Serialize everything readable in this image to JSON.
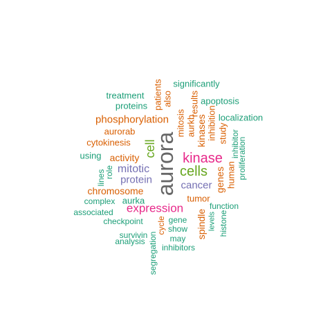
{
  "colors": {
    "green": "#1b9e77",
    "orange": "#d95f02",
    "purple": "#7570b3",
    "pink": "#e7298a",
    "lime": "#66a61e",
    "gray": "#666666"
  },
  "words": [
    {
      "text": "aurora",
      "color": "gray",
      "vertical": true
    },
    {
      "text": "kinase",
      "color": "pink",
      "vertical": false
    },
    {
      "text": "cells",
      "color": "lime",
      "vertical": false
    },
    {
      "text": "expression",
      "color": "pink",
      "vertical": false
    },
    {
      "text": "cell",
      "color": "lime",
      "vertical": true
    },
    {
      "text": "mitotic",
      "color": "purple",
      "vertical": false
    },
    {
      "text": "protein",
      "color": "purple",
      "vertical": false
    },
    {
      "text": "cancer",
      "color": "purple",
      "vertical": false
    },
    {
      "text": "phosphorylation",
      "color": "orange",
      "vertical": false
    },
    {
      "text": "chromosome",
      "color": "orange",
      "vertical": false
    },
    {
      "text": "activity",
      "color": "orange",
      "vertical": false
    },
    {
      "text": "aurorab",
      "color": "orange",
      "vertical": false
    },
    {
      "text": "cytokinesis",
      "color": "orange",
      "vertical": false
    },
    {
      "text": "kinases",
      "color": "orange",
      "vertical": true
    },
    {
      "text": "aurkb",
      "color": "orange",
      "vertical": true
    },
    {
      "text": "mitosis",
      "color": "orange",
      "vertical": true
    },
    {
      "text": "inhibition",
      "color": "orange",
      "vertical": true
    },
    {
      "text": "results",
      "color": "orange",
      "vertical": true
    },
    {
      "text": "patients",
      "color": "orange",
      "vertical": true
    },
    {
      "text": "also",
      "color": "orange",
      "vertical": true
    },
    {
      "text": "study",
      "color": "orange",
      "vertical": true
    },
    {
      "text": "genes",
      "color": "orange",
      "vertical": true
    },
    {
      "text": "human",
      "color": "orange",
      "vertical": true
    },
    {
      "text": "spindle",
      "color": "orange",
      "vertical": true
    },
    {
      "text": "tumor",
      "color": "orange",
      "vertical": false
    },
    {
      "text": "cycle",
      "color": "orange",
      "vertical": true
    },
    {
      "text": "significantly",
      "color": "green",
      "vertical": false
    },
    {
      "text": "treatment",
      "color": "green",
      "vertical": false
    },
    {
      "text": "proteins",
      "color": "green",
      "vertical": false
    },
    {
      "text": "apoptosis",
      "color": "green",
      "vertical": false
    },
    {
      "text": "localization",
      "color": "green",
      "vertical": false
    },
    {
      "text": "inhibitor",
      "color": "green",
      "vertical": true
    },
    {
      "text": "proliferation",
      "color": "green",
      "vertical": true
    },
    {
      "text": "using",
      "color": "green",
      "vertical": false
    },
    {
      "text": "lines",
      "color": "green",
      "vertical": true
    },
    {
      "text": "role",
      "color": "green",
      "vertical": true
    },
    {
      "text": "aurka",
      "color": "green",
      "vertical": false
    },
    {
      "text": "complex",
      "color": "green",
      "vertical": false
    },
    {
      "text": "associated",
      "color": "green",
      "vertical": false
    },
    {
      "text": "checkpoint",
      "color": "green",
      "vertical": false
    },
    {
      "text": "gene",
      "color": "green",
      "vertical": false
    },
    {
      "text": "show",
      "color": "green",
      "vertical": false
    },
    {
      "text": "may",
      "color": "green",
      "vertical": false
    },
    {
      "text": "inhibitors",
      "color": "green",
      "vertical": false
    },
    {
      "text": "survivin",
      "color": "green",
      "vertical": false
    },
    {
      "text": "analysis",
      "color": "green",
      "vertical": false
    },
    {
      "text": "segregation",
      "color": "green",
      "vertical": true
    },
    {
      "text": "function",
      "color": "green",
      "vertical": false
    },
    {
      "text": "levels",
      "color": "green",
      "vertical": true
    },
    {
      "text": "histone",
      "color": "green",
      "vertical": true
    }
  ]
}
